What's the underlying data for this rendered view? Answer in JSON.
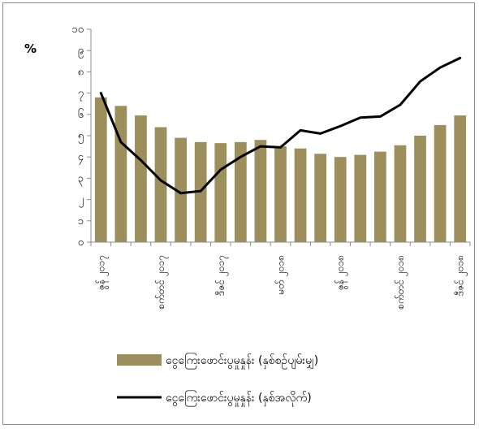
{
  "chart_data": {
    "type": "bar",
    "unit_label": "%",
    "ylim": [
      0,
      10
    ],
    "y_ticks": [
      {
        "value": 0,
        "label": "၀"
      },
      {
        "value": 1,
        "label": "၁"
      },
      {
        "value": 2,
        "label": "၂"
      },
      {
        "value": 3,
        "label": "၃"
      },
      {
        "value": 4,
        "label": "၄"
      },
      {
        "value": 5,
        "label": "၅"
      },
      {
        "value": 6,
        "label": "၆"
      },
      {
        "value": 7,
        "label": "၇"
      },
      {
        "value": 8,
        "label": "၈"
      },
      {
        "value": 9,
        "label": "၉"
      },
      {
        "value": 10,
        "label": "၁၀"
      }
    ],
    "x_tick_labels": [
      {
        "index": 0,
        "label": "ဇွန် ၂၀၁၇"
      },
      {
        "index": 3,
        "label": "စက်တင် ၂၀၁၇"
      },
      {
        "index": 6,
        "label": "ဒီဇင် ၂၀၁၇"
      },
      {
        "index": 9,
        "label": "မတ် ၂၀၁၈"
      },
      {
        "index": 12,
        "label": "ဇွန် ၂၀၁၈"
      },
      {
        "index": 15,
        "label": "စက်တင် ၂၀၁၈"
      },
      {
        "index": 18,
        "label": "ဒီဇင် ၂၀၁၈"
      }
    ],
    "grid": false,
    "legend_position": "bottom",
    "series": [
      {
        "name": "ငွေကြေးဖောင်းပွမှုနှုန်း (နှစ်စဉ်ပျမ်းမျှ)",
        "type": "bar",
        "color": "#9c8f5b",
        "values": [
          6.8,
          6.4,
          5.95,
          5.4,
          4.9,
          4.7,
          4.65,
          4.7,
          4.8,
          4.5,
          4.4,
          4.15,
          4.0,
          4.1,
          4.25,
          4.55,
          5.0,
          5.5,
          5.95
        ]
      },
      {
        "name": "ငွေကြေးဖောင်းပွမှုနှုန်း (နှစ်အလိုက်)",
        "type": "line",
        "color": "#000000",
        "values": [
          7.0,
          4.7,
          3.85,
          2.9,
          2.3,
          2.4,
          3.4,
          4.0,
          4.5,
          4.45,
          5.25,
          5.1,
          5.45,
          5.85,
          5.9,
          6.45,
          7.55,
          8.2,
          8.65
        ]
      }
    ]
  }
}
